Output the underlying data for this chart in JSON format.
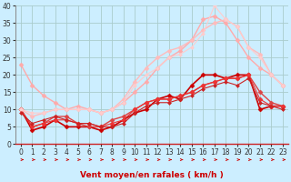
{
  "title": "",
  "xlabel": "Vent moyen/en rafales ( km/h )",
  "ylabel": "",
  "background_color": "#cceeff",
  "grid_color": "#aacccc",
  "x": [
    0,
    1,
    2,
    3,
    4,
    5,
    6,
    7,
    8,
    9,
    10,
    11,
    12,
    13,
    14,
    15,
    16,
    17,
    18,
    19,
    20,
    21,
    22,
    23
  ],
  "series": [
    {
      "y": [
        10,
        4,
        5,
        7,
        5,
        5,
        5,
        4,
        5,
        7,
        9,
        10,
        13,
        14,
        13,
        17,
        20,
        20,
        19,
        20,
        20,
        10,
        11,
        11
      ],
      "color": "#cc0000",
      "marker": "D",
      "linewidth": 1.2,
      "markersize": 2.5
    },
    {
      "y": [
        10,
        5,
        6,
        8,
        8,
        6,
        5,
        5,
        7,
        8,
        10,
        12,
        13,
        13,
        14,
        15,
        17,
        18,
        19,
        19,
        20,
        15,
        12,
        11
      ],
      "color": "#dd4444",
      "marker": "D",
      "linewidth": 1.0,
      "markersize": 2.5
    },
    {
      "y": [
        10,
        5,
        6,
        7,
        7,
        6,
        6,
        5,
        6,
        7,
        10,
        12,
        13,
        13,
        14,
        15,
        17,
        18,
        19,
        19,
        20,
        13,
        11,
        11
      ],
      "color": "#ee3333",
      "marker": "D",
      "linewidth": 0.8,
      "markersize": 2.5
    },
    {
      "y": [
        23,
        17,
        14,
        12,
        10,
        11,
        10,
        9,
        10,
        12,
        15,
        18,
        22,
        25,
        27,
        30,
        36,
        37,
        35,
        30,
        25,
        22,
        20,
        17
      ],
      "color": "#ffaaaa",
      "marker": "D",
      "linewidth": 1.0,
      "markersize": 2.5
    },
    {
      "y": [
        10,
        8,
        9,
        10,
        10,
        10,
        10,
        9,
        10,
        13,
        18,
        22,
        25,
        27,
        28,
        30,
        33,
        35,
        36,
        34,
        28,
        26,
        20,
        17
      ],
      "color": "#ffbbbb",
      "marker": "D",
      "linewidth": 1.0,
      "markersize": 2.5
    },
    {
      "y": [
        10,
        9,
        9,
        10,
        10,
        10,
        10,
        9,
        10,
        12,
        17,
        20,
        22,
        25,
        26,
        28,
        32,
        40,
        36,
        34,
        28,
        25,
        20,
        17
      ],
      "color": "#ffcccc",
      "marker": "D",
      "linewidth": 0.8,
      "markersize": 2.0
    },
    {
      "y": [
        9,
        6,
        7,
        8,
        7,
        6,
        6,
        5,
        5,
        6,
        9,
        11,
        12,
        12,
        13,
        14,
        16,
        17,
        18,
        17,
        19,
        12,
        11,
        10
      ],
      "color": "#cc2222",
      "marker": "D",
      "linewidth": 0.8,
      "markersize": 2.0
    }
  ],
  "ylim": [
    0,
    40
  ],
  "xlim": [
    -0.5,
    23.5
  ],
  "yticks": [
    0,
    5,
    10,
    15,
    20,
    25,
    30,
    35,
    40
  ],
  "xticks": [
    0,
    1,
    2,
    3,
    4,
    5,
    6,
    7,
    8,
    9,
    10,
    11,
    12,
    13,
    14,
    15,
    16,
    17,
    18,
    19,
    20,
    21,
    22,
    23
  ],
  "xlabel_color": "#cc0000",
  "xlabel_fontsize": 6.5,
  "tick_fontsize": 5.5,
  "arrow_color": "#cc0000",
  "spine_color": "#cc2222"
}
